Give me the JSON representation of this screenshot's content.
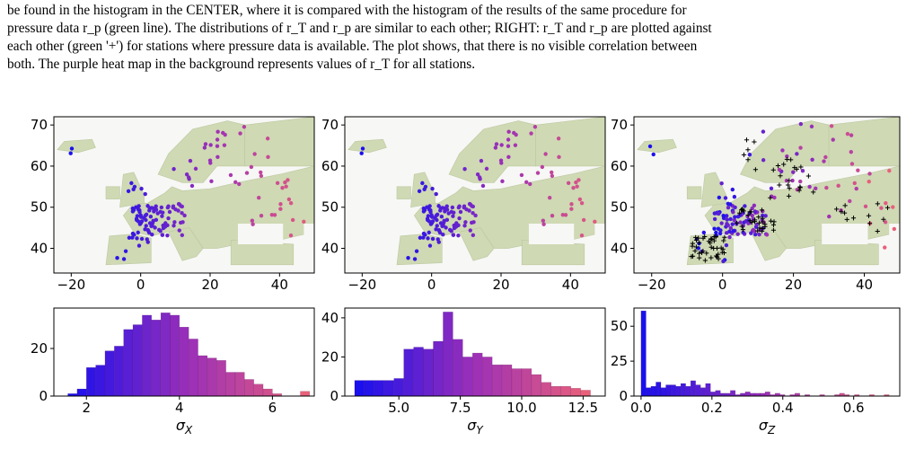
{
  "caption": {
    "lines": [
      "be found in the histogram in the CENTER, where it is compared with the histogram of the results of the same procedure for",
      "pressure data r_p (green line). The distributions of r_T and r_p are similar to each other; RIGHT: r_T and r_p are plotted against",
      "each other (green '+') for stations where pressure data is available. The plot shows, that there is no visible correlation between",
      "both. The purple heat map in the background represents values of r_T for all stations."
    ]
  },
  "colors": {
    "low": "#1a10ee",
    "mid": "#9b2fb8",
    "high": "#e8607a",
    "cross": "#000000",
    "land": "#cfd9b4",
    "sea": "#f7f7f5"
  },
  "maps": [
    {
      "xticks": [
        -20,
        0,
        20,
        40
      ],
      "yticks": [
        40,
        50,
        60,
        70
      ],
      "xlim": [
        -25,
        50
      ],
      "ylim": [
        34,
        72
      ],
      "has_crosses": false,
      "seed": 3
    },
    {
      "xticks": [
        -20,
        0,
        20,
        40
      ],
      "yticks": [
        40,
        50,
        60,
        70
      ],
      "xlim": [
        -25,
        50
      ],
      "ylim": [
        34,
        72
      ],
      "has_crosses": false,
      "seed": 3
    },
    {
      "xticks": [
        -20,
        0,
        20,
        40
      ],
      "yticks": [
        40,
        50,
        60,
        70
      ],
      "xlim": [
        -25,
        50
      ],
      "ylim": [
        34,
        72
      ],
      "has_crosses": true,
      "seed": 11
    }
  ],
  "chart_data": [
    {
      "type": "bar",
      "xlabel": "σ_X",
      "xlim": [
        1.3,
        6.9
      ],
      "ylim": [
        0,
        37
      ],
      "xticks": [
        2,
        4,
        6
      ],
      "yticks": [
        0,
        20
      ],
      "bins": [
        1.6,
        1.8,
        2.0,
        2.2,
        2.4,
        2.6,
        2.8,
        3.0,
        3.2,
        3.4,
        3.6,
        3.8,
        4.0,
        4.2,
        4.4,
        4.6,
        4.8,
        5.0,
        5.2,
        5.4,
        5.6,
        5.8,
        6.0,
        6.2,
        6.4,
        6.6
      ],
      "values": [
        1,
        3,
        12,
        13,
        19,
        21,
        28,
        30,
        34,
        32,
        35,
        34,
        29,
        24,
        17,
        16,
        15,
        10,
        10,
        7,
        5,
        3,
        1,
        0,
        0,
        2
      ]
    },
    {
      "type": "bar",
      "xlabel": "σ_Y",
      "xlim": [
        2.8,
        13.4
      ],
      "ylim": [
        0,
        45
      ],
      "xticks": [
        5.0,
        7.5,
        10.0,
        12.5
      ],
      "yticks": [
        0,
        20,
        40
      ],
      "bins": [
        3.2,
        3.6,
        4.0,
        4.4,
        4.8,
        5.2,
        5.6,
        6.0,
        6.4,
        6.8,
        7.2,
        7.6,
        8.0,
        8.4,
        8.8,
        9.2,
        9.6,
        10.0,
        10.4,
        10.8,
        11.2,
        11.6,
        12.0,
        12.4
      ],
      "values": [
        8,
        8,
        8,
        8,
        9,
        24,
        25,
        24,
        28,
        43,
        29,
        20,
        22,
        20,
        16,
        16,
        14,
        14,
        11,
        7,
        5,
        5,
        4,
        3
      ]
    },
    {
      "type": "bar",
      "xlabel": "σ_Z",
      "xlim": [
        -0.02,
        0.73
      ],
      "ylim": [
        0,
        63
      ],
      "xticks": [
        0.0,
        0.2,
        0.4,
        0.6
      ],
      "yticks": [
        0,
        25,
        50
      ],
      "bins": [
        0.0,
        0.014,
        0.028,
        0.042,
        0.056,
        0.07,
        0.084,
        0.098,
        0.112,
        0.126,
        0.14,
        0.154,
        0.168,
        0.182,
        0.196,
        0.21,
        0.224,
        0.238,
        0.252,
        0.266,
        0.28,
        0.294,
        0.308,
        0.322,
        0.336,
        0.35,
        0.364,
        0.378,
        0.392,
        0.406,
        0.42,
        0.434,
        0.448,
        0.462,
        0.476,
        0.49,
        0.504,
        0.518,
        0.532,
        0.546,
        0.56,
        0.574,
        0.588,
        0.602,
        0.616,
        0.63,
        0.644,
        0.658,
        0.672,
        0.686
      ],
      "values": [
        61,
        6,
        7,
        10,
        6,
        8,
        8,
        7,
        9,
        7,
        11,
        8,
        6,
        9,
        3,
        4,
        2,
        2,
        4,
        1,
        2,
        3,
        2,
        2,
        2,
        3,
        1,
        2,
        1,
        0,
        1,
        2,
        0,
        1,
        0,
        0,
        1,
        0,
        0,
        1,
        2,
        1,
        0,
        1,
        0,
        0,
        1,
        0,
        0,
        1
      ]
    }
  ]
}
